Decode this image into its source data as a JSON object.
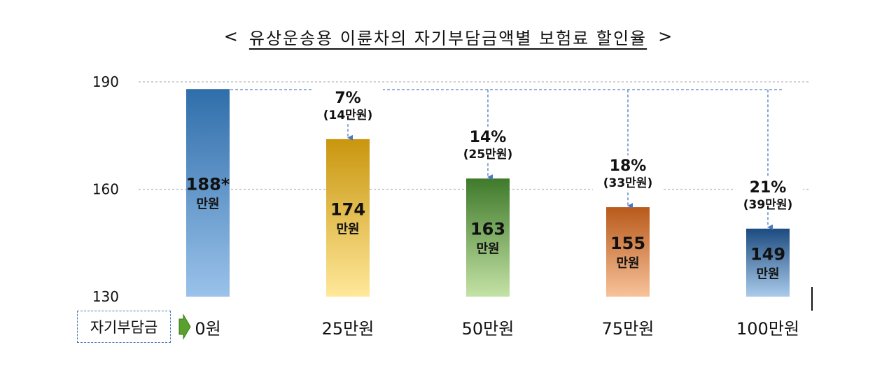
{
  "title": {
    "left_bracket": "<",
    "text": "유상운송용 이륜차의 자기부담금액별 보험료 할인율",
    "right_bracket": ">"
  },
  "category_axis_label": "자기부담금",
  "colors": {
    "bar_0": [
      "#2f6eaa",
      "#9ac2ea"
    ],
    "bar_25": [
      "#c9960e",
      "#ffe89a"
    ],
    "bar_50": [
      "#3f7a2a",
      "#c4e2a6"
    ],
    "bar_75": [
      "#b85a1a",
      "#f8c29a"
    ],
    "bar_100": [
      "#1c4b80",
      "#aacbea"
    ],
    "guide_line": "#4a78c0",
    "grid": "#b9b9b9"
  },
  "chart_data": {
    "type": "bar",
    "title": "유상운송용 이륜차의 자기부담금액별 보험료 할인율",
    "xlabel": "자기부담금",
    "ylabel": "",
    "ylim": [
      130,
      190
    ],
    "yticks": [
      190,
      160,
      130
    ],
    "grid": true,
    "categories": [
      "0원",
      "25만원",
      "50만원",
      "75만원",
      "100만원"
    ],
    "values": [
      188,
      174,
      163,
      155,
      149
    ],
    "bar_labels": [
      "188*",
      "174",
      "163",
      "155",
      "149"
    ],
    "bar_unit": "만원",
    "discounts": [
      null,
      {
        "percent": "7%",
        "amount": "(14만원)"
      },
      {
        "percent": "14%",
        "amount": "(25만원)"
      },
      {
        "percent": "18%",
        "amount": "(33만원)"
      },
      {
        "percent": "21%",
        "amount": "(39만원)"
      }
    ]
  }
}
